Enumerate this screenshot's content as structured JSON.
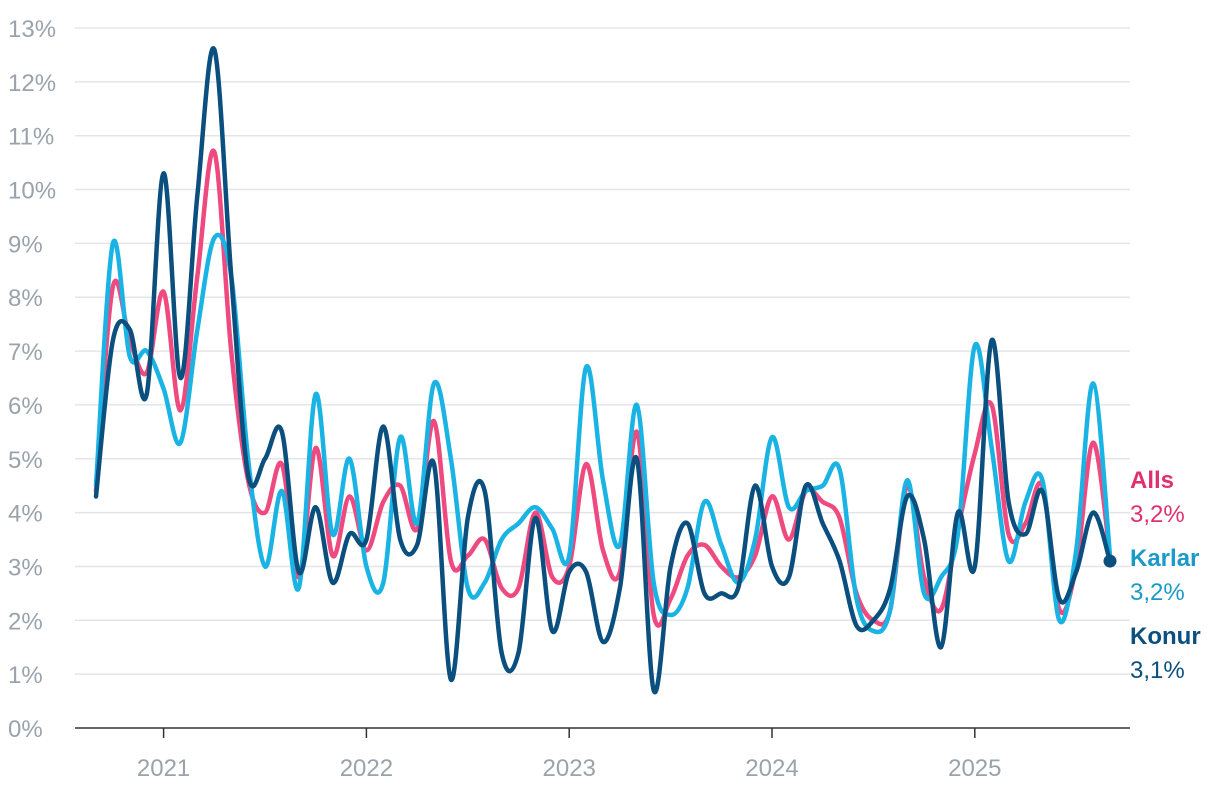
{
  "chart_data": {
    "type": "line",
    "title": "",
    "xlabel": "",
    "ylabel": "",
    "ylim": [
      0,
      13
    ],
    "y_ticks": [
      "0%",
      "1%",
      "2%",
      "3%",
      "4%",
      "5%",
      "6%",
      "7%",
      "8%",
      "9%",
      "10%",
      "11%",
      "12%",
      "13%"
    ],
    "x_ticks": [
      "2021",
      "2022",
      "2023",
      "2024",
      "2025"
    ],
    "grid": "horizontal",
    "legend": "right end labels",
    "x_start": "2020-09",
    "x_end": "2025-09",
    "series": [
      {
        "name": "Alls",
        "end_label": "3,2%",
        "color": "#ee4a80",
        "values": [
          4.4,
          8.2,
          7.2,
          6.6,
          8.1,
          5.9,
          8.4,
          10.7,
          7.0,
          4.6,
          4.0,
          4.9,
          2.8,
          5.2,
          3.2,
          4.3,
          3.3,
          4.2,
          4.5,
          3.7,
          5.7,
          3.1,
          3.2,
          3.5,
          2.6,
          2.6,
          4.0,
          2.8,
          3.0,
          4.9,
          3.3,
          2.9,
          5.5,
          2.1,
          2.4,
          3.2,
          3.4,
          3.0,
          2.8,
          3.2,
          4.3,
          3.5,
          4.4,
          4.2,
          3.9,
          2.5,
          2.0,
          2.2,
          4.5,
          2.8,
          2.2,
          3.7,
          5.1,
          6.0,
          3.6,
          3.8,
          4.5,
          2.2,
          3.0,
          5.3,
          3.2
        ]
      },
      {
        "name": "Karlar",
        "end_label": "3,2%",
        "color": "#1ab4e4",
        "values": [
          4.5,
          9.0,
          6.9,
          7.0,
          6.3,
          5.3,
          7.4,
          9.1,
          8.4,
          5.0,
          3.0,
          4.4,
          2.6,
          6.2,
          3.6,
          5.0,
          3.0,
          2.7,
          5.4,
          3.8,
          6.4,
          5.0,
          2.6,
          2.7,
          3.5,
          3.8,
          4.1,
          3.7,
          3.2,
          6.7,
          4.6,
          3.4,
          6.0,
          2.7,
          2.1,
          2.6,
          4.2,
          3.4,
          2.7,
          3.5,
          5.4,
          4.1,
          4.4,
          4.5,
          4.8,
          2.4,
          1.8,
          2.2,
          4.6,
          2.5,
          2.8,
          3.6,
          7.1,
          5.2,
          3.1,
          4.2,
          4.6,
          2.0,
          3.3,
          6.4,
          3.2
        ]
      },
      {
        "name": "Konur",
        "end_label": "3,1%",
        "color": "#0a4f7e",
        "values": [
          4.3,
          7.2,
          7.4,
          6.2,
          10.3,
          6.5,
          9.9,
          12.6,
          8.4,
          4.7,
          5.0,
          5.5,
          2.9,
          4.1,
          2.7,
          3.6,
          3.5,
          5.6,
          3.5,
          3.4,
          4.9,
          0.9,
          3.9,
          4.4,
          1.4,
          1.4,
          3.9,
          1.8,
          2.9,
          2.9,
          1.6,
          2.6,
          5.0,
          0.7,
          3.0,
          3.8,
          2.5,
          2.5,
          2.6,
          4.5,
          3.0,
          2.8,
          4.5,
          3.8,
          3.1,
          1.9,
          2.0,
          2.6,
          4.3,
          3.5,
          1.5,
          4.0,
          3.0,
          7.2,
          4.2,
          3.6,
          4.4,
          2.4,
          2.9,
          4.0,
          3.1
        ]
      }
    ]
  }
}
